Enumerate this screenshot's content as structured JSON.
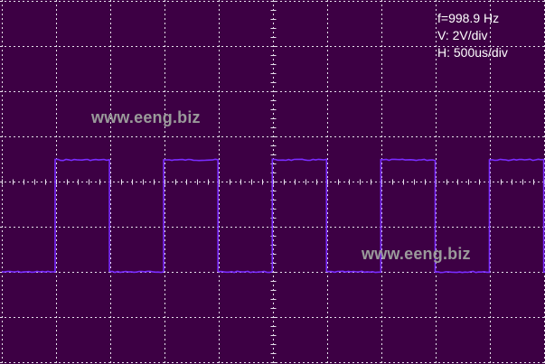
{
  "readout": {
    "frequency": "f=998.9 Hz",
    "vertical_scale": "V: 2V/div",
    "horizontal_scale": "H: 500us/div"
  },
  "watermarks": {
    "top": "www.eeng.biz",
    "bottom": "www.eeng.biz"
  },
  "colors": {
    "screen_background": "#3d0044",
    "grid": "#e8e0ee",
    "trace": "#7a2cff",
    "readout_text": "#ffffff",
    "watermark_text": "#9a9a9a"
  },
  "waveform": {
    "type": "square",
    "frequency_hz": 998.9,
    "duty_cycle_percent": 50,
    "volts_per_div": 2,
    "time_per_div_us": 500
  }
}
